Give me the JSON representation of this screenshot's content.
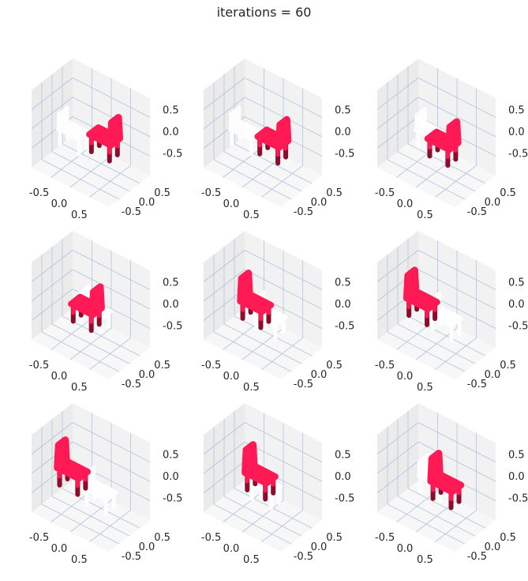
{
  "figure": {
    "title": "iterations = 60"
  },
  "chart_data": {
    "type": "scatter",
    "projection": "3d",
    "layout": "3x3 grid of 3D scatter subplots",
    "title": "iterations = 60",
    "point_colors": {
      "moving": "#ff1a55",
      "moving_shadow": "#8b0d2c",
      "target": "#ffffff"
    },
    "axes": {
      "x_ticks": [
        "-0.5",
        "0.0",
        "0.5"
      ],
      "y_ticks": [
        "0.5",
        "0.0",
        "-0.5"
      ],
      "z_ticks": [
        "0.5",
        "0.0",
        "-0.5"
      ],
      "xlim": [
        -0.8,
        0.8
      ],
      "ylim": [
        -0.8,
        0.8
      ],
      "zlim": [
        -0.8,
        0.8
      ],
      "grid": true,
      "pane_color": "#f2f2f2",
      "grid_color": "#b0c4de"
    },
    "subplots": [
      {
        "index": 1,
        "moving_chair": {
          "x": 0.15,
          "y": -0.25,
          "z": -0.1,
          "facing": "right"
        },
        "target_chair": {
          "x": -0.25,
          "y": 0.2,
          "z": 0.0
        }
      },
      {
        "index": 2,
        "moving_chair": {
          "x": 0.1,
          "y": -0.2,
          "z": -0.15,
          "facing": "right"
        },
        "target_chair": {
          "x": -0.25,
          "y": 0.2,
          "z": 0.0
        }
      },
      {
        "index": 3,
        "moving_chair": {
          "x": 0.05,
          "y": -0.15,
          "z": -0.2,
          "facing": "right"
        },
        "target_chair": {
          "x": 0.0,
          "y": 0.2,
          "z": 0.1
        }
      },
      {
        "index": 4,
        "moving_chair": {
          "x": -0.2,
          "y": -0.2,
          "z": -0.2,
          "facing": "right"
        },
        "target_chair": {
          "x": 0.2,
          "y": 0.2,
          "z": 0.1
        }
      },
      {
        "index": 5,
        "moving_chair": {
          "x": -0.2,
          "y": -0.1,
          "z": -0.1,
          "facing": "left"
        },
        "target_chair": {
          "x": 0.25,
          "y": 0.2,
          "z": 0.0
        }
      },
      {
        "index": 6,
        "moving_chair": {
          "x": -0.3,
          "y": 0.0,
          "z": -0.05,
          "facing": "left"
        },
        "target_chair": {
          "x": 0.3,
          "y": 0.2,
          "z": 0.0
        }
      },
      {
        "index": 7,
        "moving_chair": {
          "x": -0.35,
          "y": 0.05,
          "z": 0.0,
          "facing": "left"
        },
        "target_chair": {
          "x": 0.25,
          "y": 0.1,
          "z": -0.1
        }
      },
      {
        "index": 8,
        "moving_chair": {
          "x": 0.0,
          "y": 0.1,
          "z": 0.1,
          "facing": "left"
        },
        "target_chair": {
          "x": 0.0,
          "y": -0.1,
          "z": -0.2
        }
      },
      {
        "index": 9,
        "moving_chair": {
          "x": 0.25,
          "y": 0.1,
          "z": 0.05,
          "facing": "left"
        },
        "target_chair": {
          "x": -0.1,
          "y": -0.1,
          "z": -0.1
        }
      }
    ]
  }
}
